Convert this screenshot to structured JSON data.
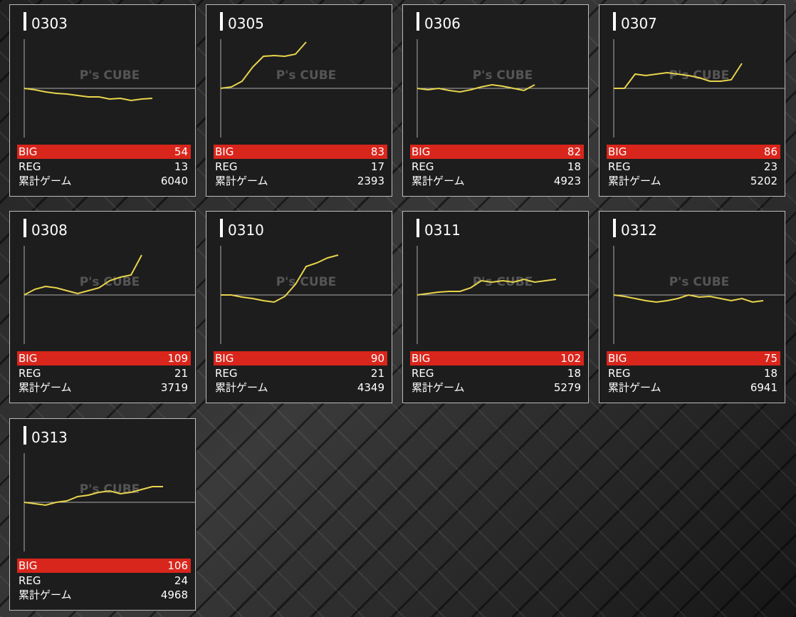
{
  "watermark": "P's CUBE",
  "labels": {
    "big": "BIG",
    "reg": "REG",
    "games": "累計ゲーム"
  },
  "cards": [
    {
      "id": "0303",
      "big": 54,
      "reg": 13,
      "games": 6040,
      "graph": [
        0,
        -2,
        -5,
        -7,
        -8,
        -10,
        -12,
        -12,
        -15,
        -14,
        -17,
        -15,
        -14
      ]
    },
    {
      "id": "0305",
      "big": 83,
      "reg": 17,
      "games": 2393,
      "graph": [
        0,
        2,
        10,
        30,
        45,
        46,
        45,
        48,
        65
      ]
    },
    {
      "id": "0306",
      "big": 82,
      "reg": 18,
      "games": 4923,
      "graph": [
        0,
        -2,
        0,
        -3,
        -5,
        -2,
        2,
        5,
        3,
        0,
        -3,
        5
      ]
    },
    {
      "id": "0307",
      "big": 86,
      "reg": 23,
      "games": 5202,
      "graph": [
        0,
        0,
        20,
        18,
        20,
        22,
        20,
        18,
        15,
        10,
        10,
        12,
        35
      ]
    },
    {
      "id": "0308",
      "big": 109,
      "reg": 21,
      "games": 3719,
      "graph": [
        0,
        8,
        12,
        10,
        6,
        2,
        6,
        10,
        20,
        25,
        28,
        56
      ]
    },
    {
      "id": "0310",
      "big": 90,
      "reg": 21,
      "games": 4349,
      "graph": [
        0,
        0,
        -3,
        -5,
        -8,
        -10,
        -2,
        15,
        40,
        45,
        52,
        56
      ]
    },
    {
      "id": "0311",
      "big": 102,
      "reg": 18,
      "games": 5279,
      "graph": [
        0,
        2,
        4,
        5,
        5,
        10,
        20,
        18,
        20,
        18,
        22,
        18,
        20,
        22
      ]
    },
    {
      "id": "0312",
      "big": 75,
      "reg": 18,
      "games": 6941,
      "graph": [
        0,
        -2,
        -5,
        -8,
        -10,
        -8,
        -5,
        0,
        -3,
        -2,
        -5,
        -8,
        -5,
        -10,
        -8
      ]
    },
    {
      "id": "0313",
      "big": 106,
      "reg": 24,
      "games": 4968,
      "graph": [
        0,
        -2,
        -4,
        0,
        2,
        8,
        10,
        14,
        16,
        12,
        14,
        18,
        22,
        22
      ]
    }
  ]
}
